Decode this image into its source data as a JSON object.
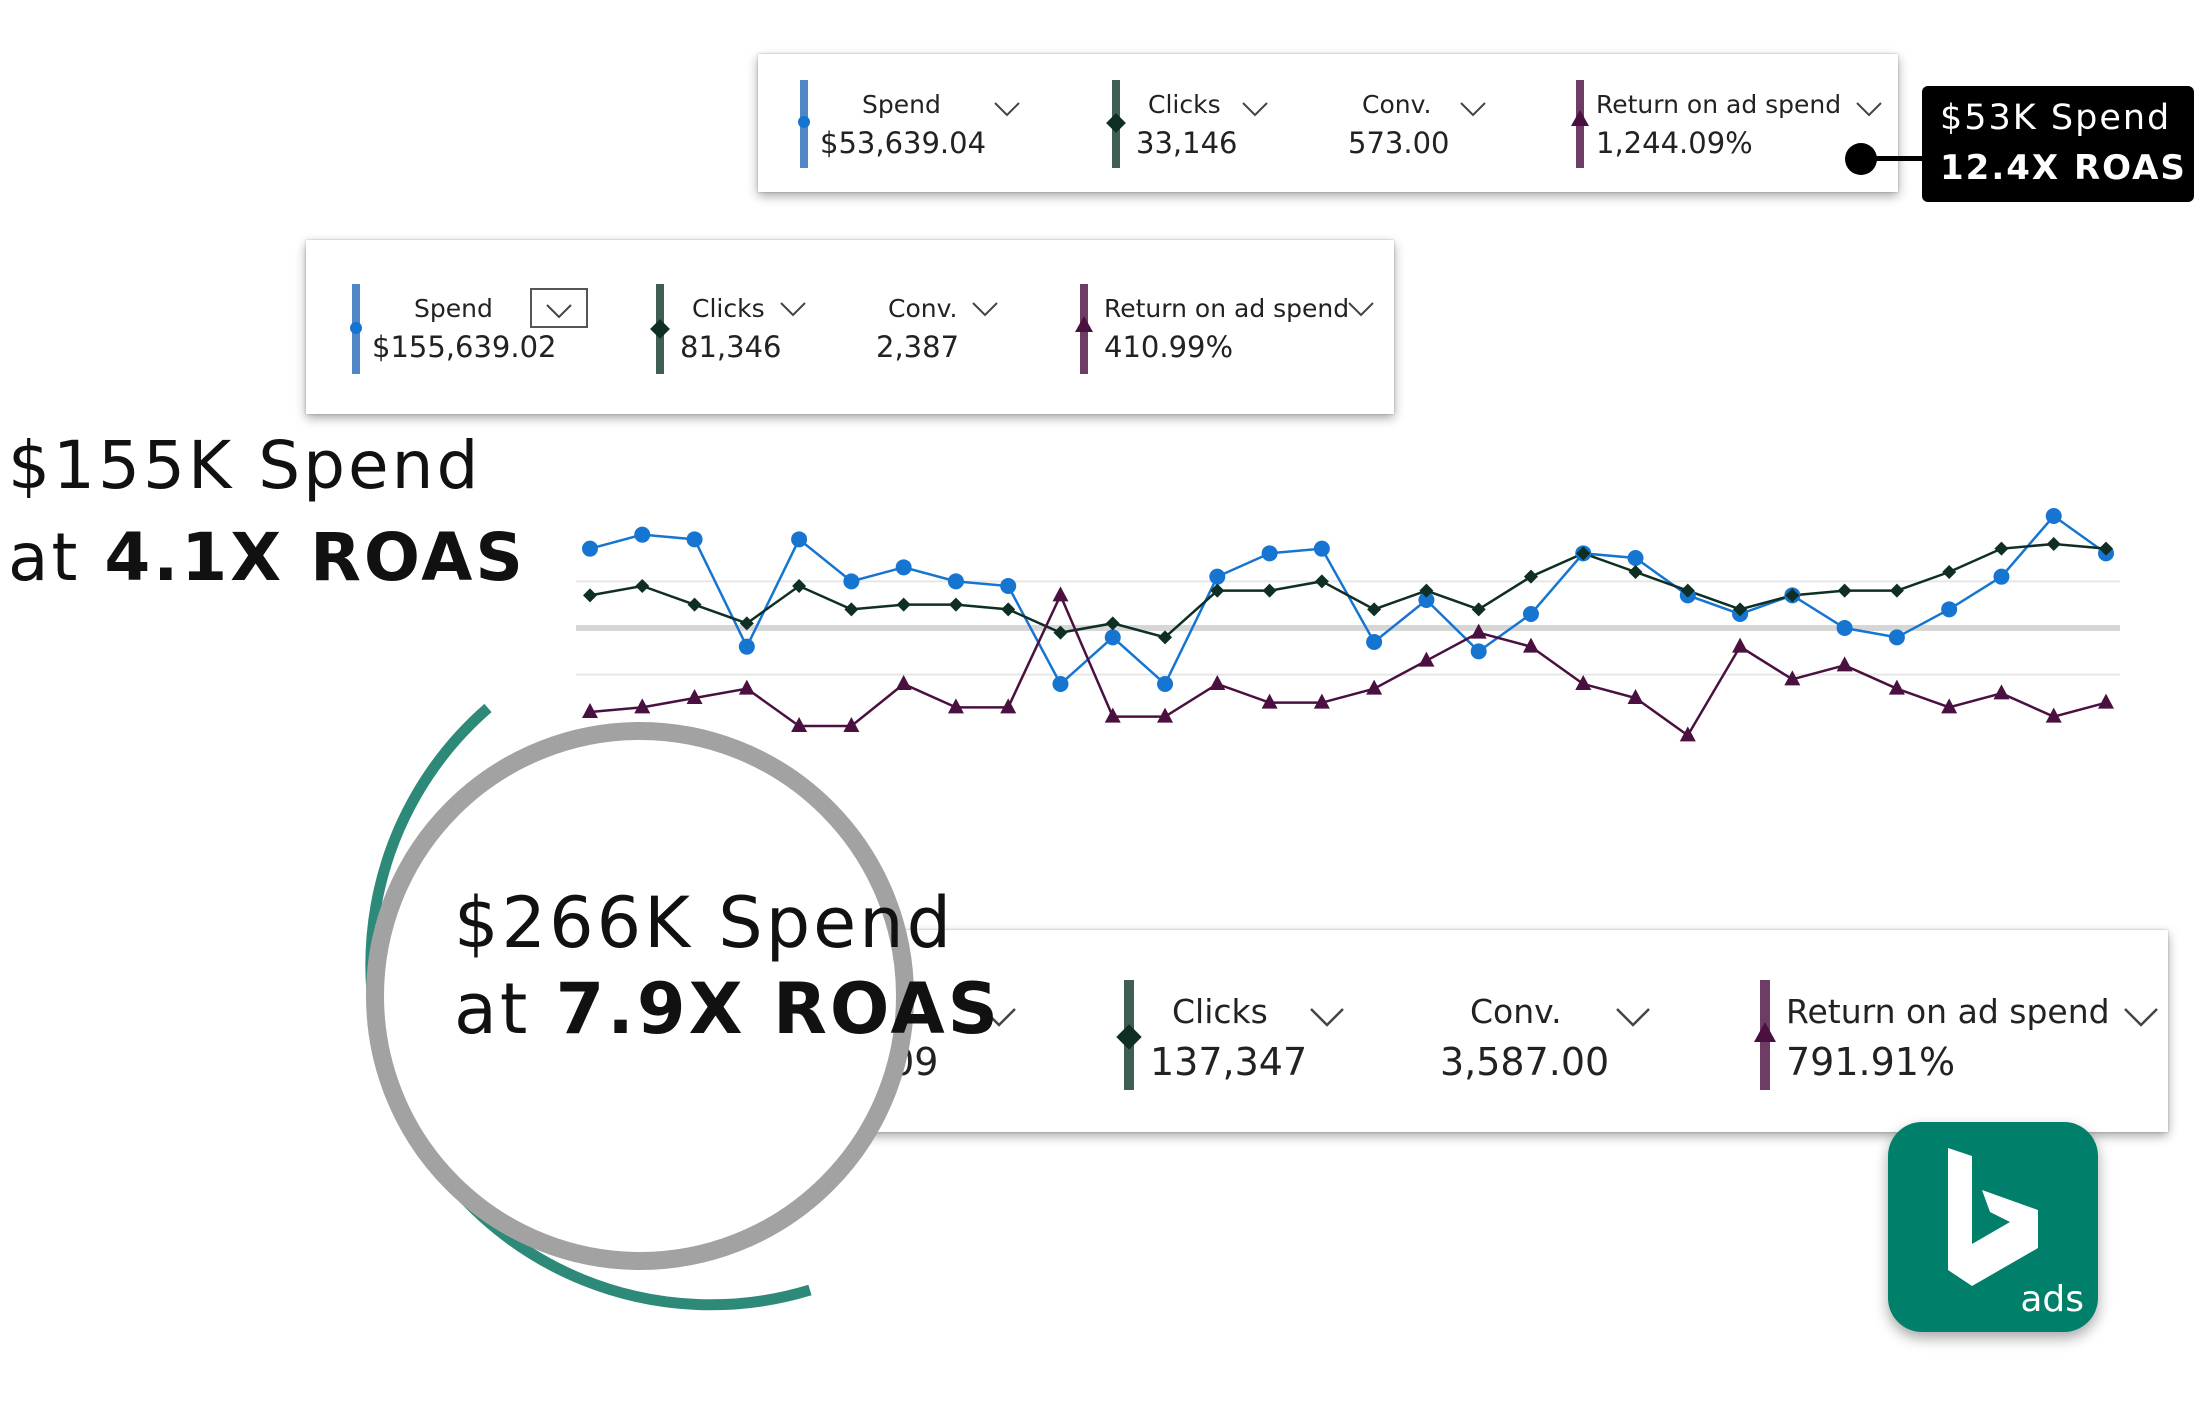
{
  "colors": {
    "spend": "#1675d0",
    "clicks": "#0f2e24",
    "roas": "#4a1140",
    "spend_bar": "#4f86c6",
    "clicks_bar": "#3f5e55",
    "roas_bar": "#6e3d66",
    "bing_green": "#00806b",
    "ring_green": "#2e8a78"
  },
  "card_top": {
    "spend_label": "Spend",
    "spend_value": "$53,639.04",
    "clicks_label": "Clicks",
    "clicks_value": "33,146",
    "conv_label": "Conv.",
    "conv_value": "573.00",
    "roas_label": "Return on ad spend",
    "roas_value": "1,244.09%"
  },
  "badge_top": {
    "line1": "$53K Spend",
    "line2": "12.4X ROAS"
  },
  "card_mid": {
    "spend_label": "Spend",
    "spend_value": "$155,639.02",
    "clicks_label": "Clicks",
    "clicks_value": "81,346",
    "conv_label": "Conv.",
    "conv_value": "2,387",
    "roas_label": "Return on ad spend",
    "roas_value": "410.99%"
  },
  "headline_mid": {
    "line1": "$155K Spend",
    "line2_prefix": "at ",
    "line2_bold": "4.1X ROAS"
  },
  "card_bottom": {
    "spend_value_partial": ".09",
    "clicks_label": "Clicks",
    "clicks_value": "137,347",
    "conv_label": "Conv.",
    "conv_value": "3,587.00",
    "roas_label": "Return on ad spend",
    "roas_value": "791.91%"
  },
  "headline_bottom": {
    "line1": "$266K Spend",
    "line2_prefix": "at ",
    "line2_bold": "7.9X ROAS"
  },
  "logo": {
    "text": "ads",
    "icon": "bing-icon"
  },
  "chart_data": {
    "type": "line",
    "x": [
      1,
      2,
      3,
      4,
      5,
      6,
      7,
      8,
      9,
      10,
      11,
      12,
      13,
      14,
      15,
      16,
      17,
      18,
      19,
      20,
      21,
      22,
      23,
      24,
      25,
      26,
      27,
      28,
      29,
      30
    ],
    "series": [
      {
        "name": "Spend",
        "marker": "circle",
        "values": [
          62,
          65,
          64,
          41,
          64,
          55,
          58,
          55,
          54,
          33,
          43,
          33,
          56,
          61,
          62,
          42,
          51,
          40,
          48,
          61,
          60,
          52,
          48,
          52,
          45,
          43,
          49,
          56,
          69,
          61
        ]
      },
      {
        "name": "Clicks",
        "marker": "diamond",
        "values": [
          52,
          54,
          50,
          46,
          54,
          49,
          50,
          50,
          49,
          44,
          46,
          43,
          53,
          53,
          55,
          49,
          53,
          49,
          56,
          61,
          57,
          53,
          49,
          52,
          53,
          53,
          57,
          62,
          63,
          62
        ]
      },
      {
        "name": "Return on ad spend",
        "marker": "triangle",
        "values": [
          27,
          28,
          30,
          32,
          24,
          24,
          33,
          28,
          28,
          52,
          26,
          26,
          33,
          29,
          29,
          32,
          38,
          44,
          41,
          33,
          30,
          22,
          41,
          34,
          37,
          32,
          28,
          31,
          26,
          29
        ]
      }
    ],
    "grid": true
  }
}
